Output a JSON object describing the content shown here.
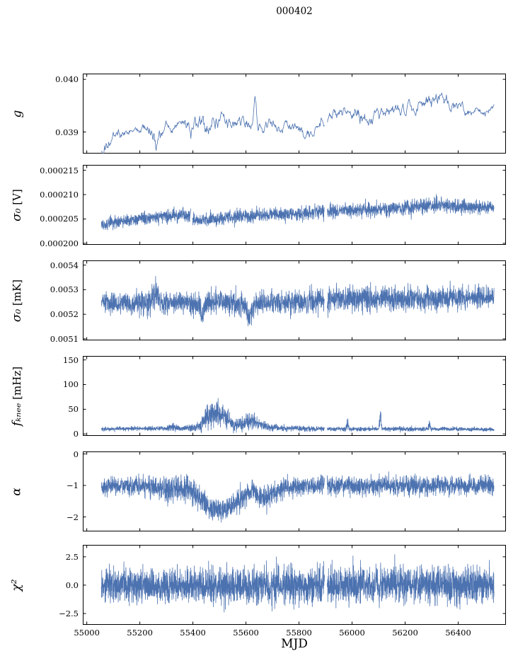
{
  "chart_data": {
    "type": "line",
    "title": "000402",
    "xlabel": "MJD",
    "accent_color": "#4c72b0",
    "xlim": [
      54985,
      56580
    ],
    "x_data_range": [
      55055,
      56535
    ],
    "xticks": [
      {
        "v": 55000,
        "label": "55000"
      },
      {
        "v": 55200,
        "label": "55200"
      },
      {
        "v": 55400,
        "label": "55400"
      },
      {
        "v": 55600,
        "label": "55600"
      },
      {
        "v": 55800,
        "label": "55800"
      },
      {
        "v": 56000,
        "label": "56000"
      },
      {
        "v": 56200,
        "label": "56200"
      },
      {
        "v": 56400,
        "label": "56400"
      }
    ],
    "env_format": "[MJD, mean, spread] control points of the noisy time-series envelope",
    "panels": [
      {
        "name": "g",
        "ylabel": "g",
        "label_sym": "g",
        "label_unit": "",
        "ylim": [
          0.03859,
          0.04011
        ],
        "yticks": [
          {
            "v": 0.039,
            "label": "0.039"
          },
          {
            "v": 0.04,
            "label": "0.040"
          }
        ],
        "noise": "smooth",
        "npts": 760,
        "gaps": [
          [
            55896,
            55906
          ]
        ],
        "env": [
          [
            55055,
            0.03862,
            8e-05
          ],
          [
            55070,
            0.03875,
            0.0001
          ],
          [
            55090,
            0.03885,
            8e-05
          ],
          [
            55130,
            0.03895,
            6e-05
          ],
          [
            55180,
            0.039,
            5e-05
          ],
          [
            55230,
            0.03903,
            6e-05
          ],
          [
            55252,
            0.039,
            0.0001
          ],
          [
            55262,
            0.03868,
            0.00012
          ],
          [
            55272,
            0.039,
            8e-05
          ],
          [
            55320,
            0.0391,
            6e-05
          ],
          [
            55360,
            0.03913,
            6e-05
          ],
          [
            55395,
            0.03908,
            0.00012
          ],
          [
            55420,
            0.03915,
            0.00012
          ],
          [
            55445,
            0.03905,
            0.00012
          ],
          [
            55470,
            0.0392,
            0.0001
          ],
          [
            55500,
            0.03925,
            8e-05
          ],
          [
            55530,
            0.0392,
            8e-05
          ],
          [
            55560,
            0.0391,
            8e-05
          ],
          [
            55600,
            0.03915,
            8e-05
          ],
          [
            55625,
            0.03918,
            8e-05
          ],
          [
            55634,
            0.03975,
            0.0001
          ],
          [
            55645,
            0.0392,
            8e-05
          ],
          [
            55680,
            0.03912,
            6e-05
          ],
          [
            55730,
            0.03912,
            6e-05
          ],
          [
            55790,
            0.03905,
            7e-05
          ],
          [
            55845,
            0.03893,
            6e-05
          ],
          [
            55880,
            0.0392,
            8e-05
          ],
          [
            55910,
            0.0393,
            6e-05
          ],
          [
            55950,
            0.03935,
            7e-05
          ],
          [
            56000,
            0.0394,
            8e-05
          ],
          [
            56040,
            0.03932,
            0.0001
          ],
          [
            56080,
            0.03928,
            8e-05
          ],
          [
            56120,
            0.03935,
            8e-05
          ],
          [
            56160,
            0.03938,
            7e-05
          ],
          [
            56200,
            0.0394,
            8e-05
          ],
          [
            56240,
            0.03945,
            8e-05
          ],
          [
            56280,
            0.03955,
            8e-05
          ],
          [
            56320,
            0.03962,
            9e-05
          ],
          [
            56345,
            0.03968,
            0.0001
          ],
          [
            56365,
            0.03955,
            8e-05
          ],
          [
            56395,
            0.03945,
            7e-05
          ],
          [
            56430,
            0.03938,
            6e-05
          ],
          [
            56470,
            0.0394,
            5e-05
          ],
          [
            56505,
            0.03938,
            5e-05
          ],
          [
            56520,
            0.03945,
            4e-05
          ]
        ]
      },
      {
        "name": "sigma0-v",
        "ylabel": "σ₀ [V]",
        "label_sym": "σ₀",
        "label_unit": " [V]",
        "ylim": [
          0.0001997,
          0.0002161
        ],
        "yticks": [
          {
            "v": 0.0002,
            "label": "0.000200"
          },
          {
            "v": 0.000205,
            "label": "0.000205"
          },
          {
            "v": 0.00021,
            "label": "0.000210"
          },
          {
            "v": 0.000215,
            "label": "0.000215"
          }
        ],
        "noise": "band",
        "npts": 2600,
        "gaps": [
          [
            55392,
            55399
          ],
          [
            55896,
            55906
          ]
        ],
        "env": [
          [
            55055,
            0.0002038,
            1.2e-06
          ],
          [
            55120,
            0.0002043,
            1.2e-06
          ],
          [
            55200,
            0.000205,
            1.2e-06
          ],
          [
            55280,
            0.0002055,
            1.3e-06
          ],
          [
            55360,
            0.0002058,
            1.3e-06
          ],
          [
            55392,
            0.000206,
            1.2e-06
          ],
          [
            55400,
            0.0002046,
            1.2e-06
          ],
          [
            55480,
            0.0002051,
            1.2e-06
          ],
          [
            55560,
            0.0002055,
            1.2e-06
          ],
          [
            55640,
            0.0002057,
            1.3e-06
          ],
          [
            55720,
            0.000206,
            1.3e-06
          ],
          [
            55800,
            0.000206,
            1.4e-06
          ],
          [
            55860,
            0.0002062,
            1.4e-06
          ],
          [
            55900,
            0.0002066,
            1.4e-06
          ],
          [
            55990,
            0.0002068,
            1.3e-06
          ],
          [
            56080,
            0.0002069,
            1.3e-06
          ],
          [
            56170,
            0.0002072,
            1.4e-06
          ],
          [
            56260,
            0.0002077,
            1.5e-06
          ],
          [
            56330,
            0.000208,
            1.5e-06
          ],
          [
            56400,
            0.0002076,
            1.4e-06
          ],
          [
            56470,
            0.0002074,
            1.3e-06
          ],
          [
            56520,
            0.0002073,
            1.2e-06
          ]
        ]
      },
      {
        "name": "sigma0-mk",
        "ylabel": "σ₀ [mK]",
        "label_sym": "σ₀",
        "label_unit": " [mK]",
        "ylim": [
          0.005094,
          0.005419
        ],
        "yticks": [
          {
            "v": 0.0051,
            "label": "0.0051"
          },
          {
            "v": 0.0052,
            "label": "0.0052"
          },
          {
            "v": 0.0053,
            "label": "0.0053"
          },
          {
            "v": 0.0054,
            "label": "0.0054"
          }
        ],
        "noise": "band",
        "npts": 2600,
        "gaps": [
          [
            55896,
            55906
          ]
        ],
        "env": [
          [
            55055,
            0.00525,
            4.5e-05
          ],
          [
            55120,
            0.005242,
            4e-05
          ],
          [
            55200,
            0.005248,
            4.5e-05
          ],
          [
            55250,
            0.00526,
            6e-05
          ],
          [
            55262,
            0.0053,
            5e-05
          ],
          [
            55278,
            0.005245,
            4.5e-05
          ],
          [
            55350,
            0.00525,
            4.5e-05
          ],
          [
            55425,
            0.00524,
            5e-05
          ],
          [
            55437,
            0.005195,
            4e-05
          ],
          [
            55455,
            0.00525,
            5e-05
          ],
          [
            55540,
            0.00525,
            4.5e-05
          ],
          [
            55595,
            0.005235,
            5e-05
          ],
          [
            55615,
            0.005185,
            4e-05
          ],
          [
            55640,
            0.00525,
            4.5e-05
          ],
          [
            55730,
            0.005248,
            4.5e-05
          ],
          [
            55830,
            0.005252,
            4.8e-05
          ],
          [
            55920,
            0.00526,
            5e-05
          ],
          [
            56020,
            0.005262,
            5e-05
          ],
          [
            56120,
            0.005268,
            5e-05
          ],
          [
            56220,
            0.005262,
            5e-05
          ],
          [
            56320,
            0.005265,
            4.8e-05
          ],
          [
            56420,
            0.005268,
            4.5e-05
          ],
          [
            56520,
            0.00527,
            4.2e-05
          ]
        ]
      },
      {
        "name": "fknee",
        "ylabel": "fₖₙₑₑ [mHz]",
        "label_sym": "fₖₙₑₑ",
        "label_unit": " [mHz]",
        "ylim": [
          -4,
          158
        ],
        "clip_min": 1.5,
        "clip_max": 100,
        "yticks": [
          {
            "v": 0,
            "label": "0"
          },
          {
            "v": 50,
            "label": "50"
          },
          {
            "v": 100,
            "label": "100"
          },
          {
            "v": 150,
            "label": "150"
          }
        ],
        "noise": "band",
        "npts": 2800,
        "gaps": [
          [
            55896,
            55906
          ]
        ],
        "env": [
          [
            55055,
            10,
            4
          ],
          [
            55200,
            11,
            4
          ],
          [
            55300,
            11,
            5
          ],
          [
            55325,
            15,
            9
          ],
          [
            55345,
            11,
            5
          ],
          [
            55400,
            12,
            6
          ],
          [
            55430,
            18,
            10
          ],
          [
            55455,
            38,
            24
          ],
          [
            55485,
            46,
            28
          ],
          [
            55515,
            38,
            24
          ],
          [
            55550,
            18,
            10
          ],
          [
            55585,
            20,
            12
          ],
          [
            55615,
            27,
            16
          ],
          [
            55645,
            20,
            12
          ],
          [
            55680,
            14,
            8
          ],
          [
            55730,
            12,
            6
          ],
          [
            55820,
            11,
            5
          ],
          [
            55900,
            10,
            4
          ],
          [
            55976,
            10,
            4
          ],
          [
            55982,
            24,
            14
          ],
          [
            55989,
            10,
            4
          ],
          [
            56040,
            10,
            4
          ],
          [
            56100,
            10,
            4
          ],
          [
            56106,
            42,
            26
          ],
          [
            56113,
            10,
            4
          ],
          [
            56200,
            10,
            4
          ],
          [
            56285,
            10,
            4
          ],
          [
            56291,
            21,
            12
          ],
          [
            56298,
            10,
            4
          ],
          [
            56400,
            10,
            4
          ],
          [
            56520,
            9,
            3
          ]
        ]
      },
      {
        "name": "alpha",
        "ylabel": "α",
        "label_sym": "α",
        "label_unit": "",
        "ylim": [
          -2.46,
          0.08
        ],
        "yticks": [
          {
            "v": 0,
            "label": "0"
          },
          {
            "v": -1,
            "label": "−1"
          },
          {
            "v": -2,
            "label": "−2"
          }
        ],
        "noise": "band",
        "npts": 2800,
        "gaps": [
          [
            55896,
            55906
          ]
        ],
        "env": [
          [
            55055,
            -1.0,
            0.28
          ],
          [
            55150,
            -1.0,
            0.3
          ],
          [
            55250,
            -1.02,
            0.3
          ],
          [
            55330,
            -1.15,
            0.45
          ],
          [
            55375,
            -1.05,
            0.42
          ],
          [
            55420,
            -1.35,
            0.4
          ],
          [
            55460,
            -1.7,
            0.35
          ],
          [
            55510,
            -1.8,
            0.33
          ],
          [
            55555,
            -1.65,
            0.35
          ],
          [
            55595,
            -1.35,
            0.35
          ],
          [
            55625,
            -1.15,
            0.32
          ],
          [
            55665,
            -1.4,
            0.32
          ],
          [
            55705,
            -1.25,
            0.3
          ],
          [
            55750,
            -1.05,
            0.3
          ],
          [
            55850,
            -1.0,
            0.3
          ],
          [
            55950,
            -1.03,
            0.3
          ],
          [
            56100,
            -1.0,
            0.3
          ],
          [
            56300,
            -1.0,
            0.3
          ],
          [
            56520,
            -1.0,
            0.28
          ]
        ]
      },
      {
        "name": "chi2",
        "ylabel": "χ²",
        "label_sym": "χ²",
        "label_unit": "",
        "ylim": [
          -3.5,
          3.55
        ],
        "clip_min": -3.45,
        "clip_max": 3.4,
        "yticks": [
          {
            "v": 2.5,
            "label": "2.5"
          },
          {
            "v": 0,
            "label": "0.0"
          },
          {
            "v": -2.5,
            "label": "−2.5"
          }
        ],
        "noise": "band",
        "npts": 3000,
        "gaps": [
          [
            55896,
            55906
          ]
        ],
        "env": [
          [
            55055,
            0,
            1.55
          ],
          [
            55400,
            0,
            1.55
          ],
          [
            55900,
            0,
            1.5
          ],
          [
            56520,
            0,
            1.5
          ]
        ]
      }
    ]
  }
}
